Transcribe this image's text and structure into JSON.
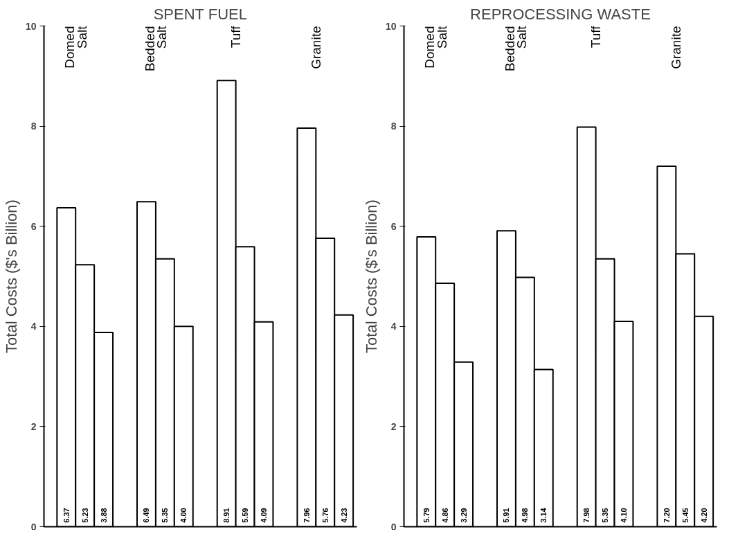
{
  "chart_data": [
    {
      "type": "bar",
      "title": "SPENT FUEL",
      "ylabel": "Total Costs ($'s Billion)",
      "categories": [
        "Domed Salt",
        "Bedded Salt",
        "Tuff",
        "Granite"
      ],
      "ylim": [
        0,
        10
      ],
      "yticks": [
        0,
        2,
        4,
        6,
        8,
        10
      ],
      "tick_labels": "y",
      "series": [
        {
          "color": "#ffffff",
          "values": [
            6.37,
            6.49,
            8.91,
            7.96
          ],
          "value_labels": [
            "6.37",
            "6.49",
            "8.91",
            "7.96"
          ]
        },
        {
          "color": "#ffffff",
          "values": [
            5.23,
            5.35,
            5.59,
            5.76
          ],
          "value_labels": [
            "5.23",
            "5.35",
            "5.59",
            "5.76"
          ]
        },
        {
          "color": "#ffffff",
          "values": [
            3.88,
            4.0,
            4.09,
            4.23
          ],
          "value_labels": [
            "3.88",
            "4.00",
            "4.09",
            "4.23"
          ]
        }
      ]
    },
    {
      "type": "bar",
      "title": "REPROCESSING WASTE",
      "ylabel": "Total Costs ($'s Billion)",
      "categories": [
        "Domed Salt",
        "Bedded Salt",
        "Tuff",
        "Granite"
      ],
      "ylim": [
        0,
        10
      ],
      "yticks": [
        0,
        2,
        4,
        6,
        8,
        10
      ],
      "tick_labels": "y",
      "series": [
        {
          "color": "#ffffff",
          "values": [
            5.79,
            5.91,
            7.98,
            7.2
          ],
          "value_labels": [
            "5.79",
            "5.91",
            "7.98",
            "7.20"
          ]
        },
        {
          "color": "#ffffff",
          "values": [
            4.86,
            4.98,
            5.35,
            5.45
          ],
          "value_labels": [
            "4.86",
            "4.98",
            "5.35",
            "5.45"
          ]
        },
        {
          "color": "#ffffff",
          "values": [
            3.29,
            3.14,
            4.1,
            4.2
          ],
          "value_labels": [
            "3.29",
            "3.14",
            "4.10",
            "4.20"
          ]
        }
      ]
    }
  ]
}
